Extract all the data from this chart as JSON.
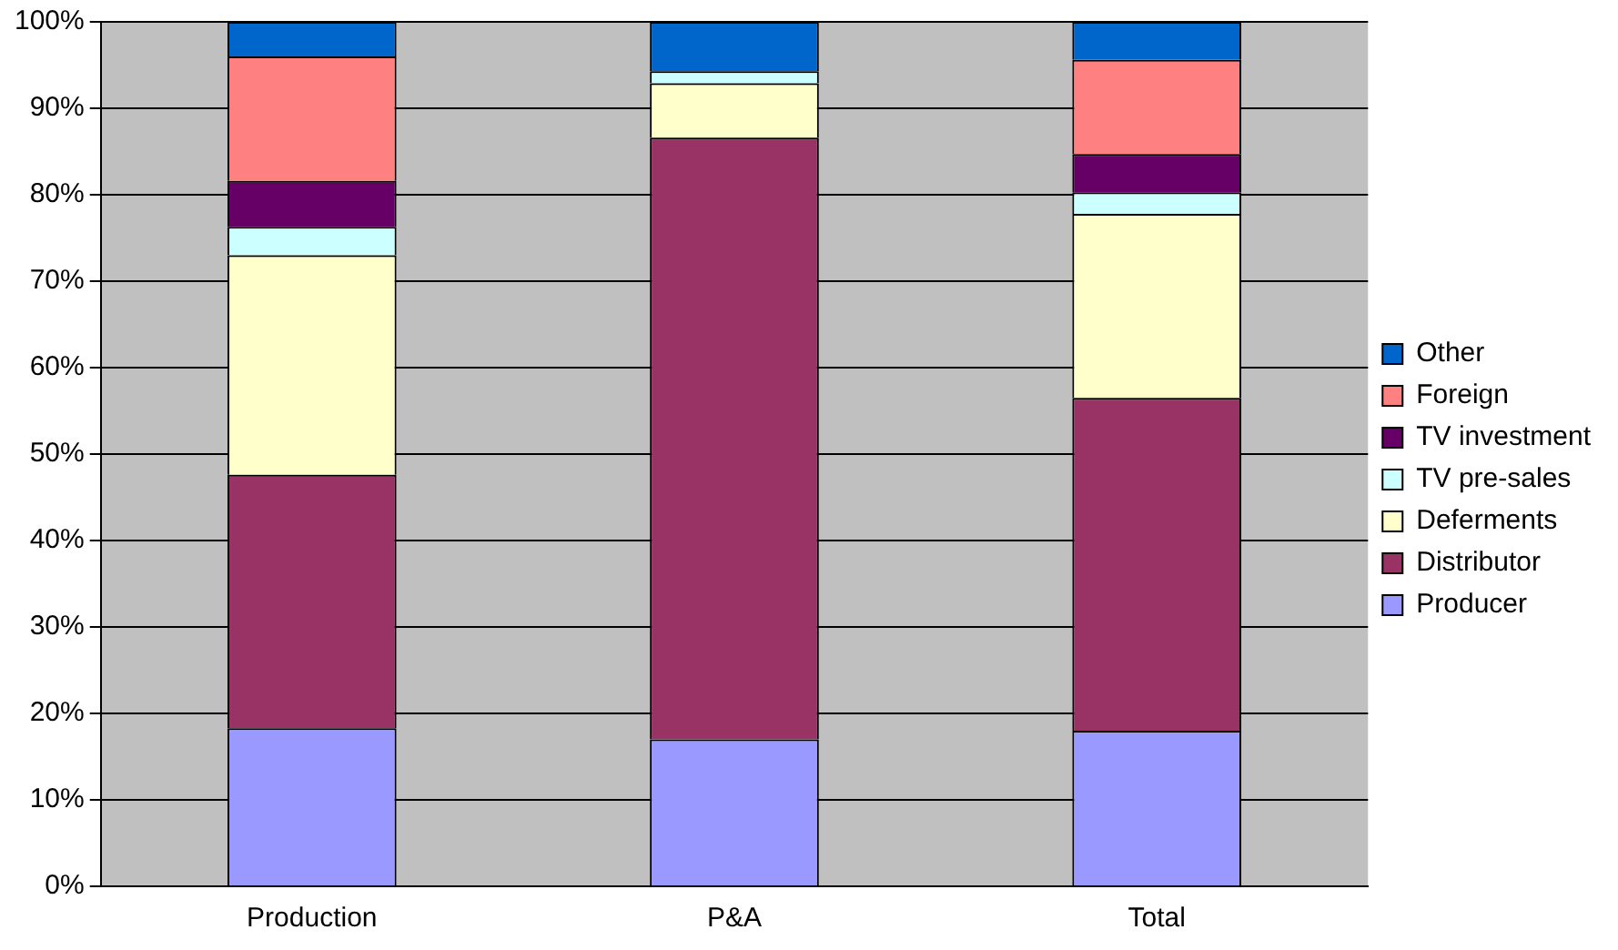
{
  "chart_data": {
    "type": "bar",
    "stacked": true,
    "categories": [
      "Production",
      "P&A",
      "Total"
    ],
    "series": [
      {
        "name": "Producer",
        "color": "#9999ff",
        "values": [
          18.3,
          17,
          18
        ]
      },
      {
        "name": "Distributor",
        "color": "#993366",
        "values": [
          29.3,
          69.6,
          38.5
        ]
      },
      {
        "name": "Deferments",
        "color": "#ffffcc",
        "values": [
          25.4,
          6.3,
          21.3
        ]
      },
      {
        "name": "TV pre-sales",
        "color": "#ccffff",
        "values": [
          3.3,
          1.4,
          2.5
        ]
      },
      {
        "name": "TV investment",
        "color": "#660066",
        "values": [
          5.3,
          0,
          4.4
        ]
      },
      {
        "name": "Foreign",
        "color": "#ff8080",
        "values": [
          14.4,
          0,
          10.9
        ]
      },
      {
        "name": "Other",
        "color": "#0066cc",
        "values": [
          4,
          5.7,
          4.4
        ]
      }
    ],
    "ylim": [
      0,
      100
    ],
    "yticks": [
      {
        "value": 0,
        "label": "0%"
      },
      {
        "value": 10,
        "label": "10%"
      },
      {
        "value": 20,
        "label": "20%"
      },
      {
        "value": 30,
        "label": "30%"
      },
      {
        "value": 40,
        "label": "40%"
      },
      {
        "value": 50,
        "label": "50%"
      },
      {
        "value": 60,
        "label": "60%"
      },
      {
        "value": 70,
        "label": "70%"
      },
      {
        "value": 80,
        "label": "80%"
      },
      {
        "value": 90,
        "label": "90%"
      },
      {
        "value": 100,
        "label": "100%"
      }
    ],
    "grid": "y",
    "legend": "right"
  }
}
